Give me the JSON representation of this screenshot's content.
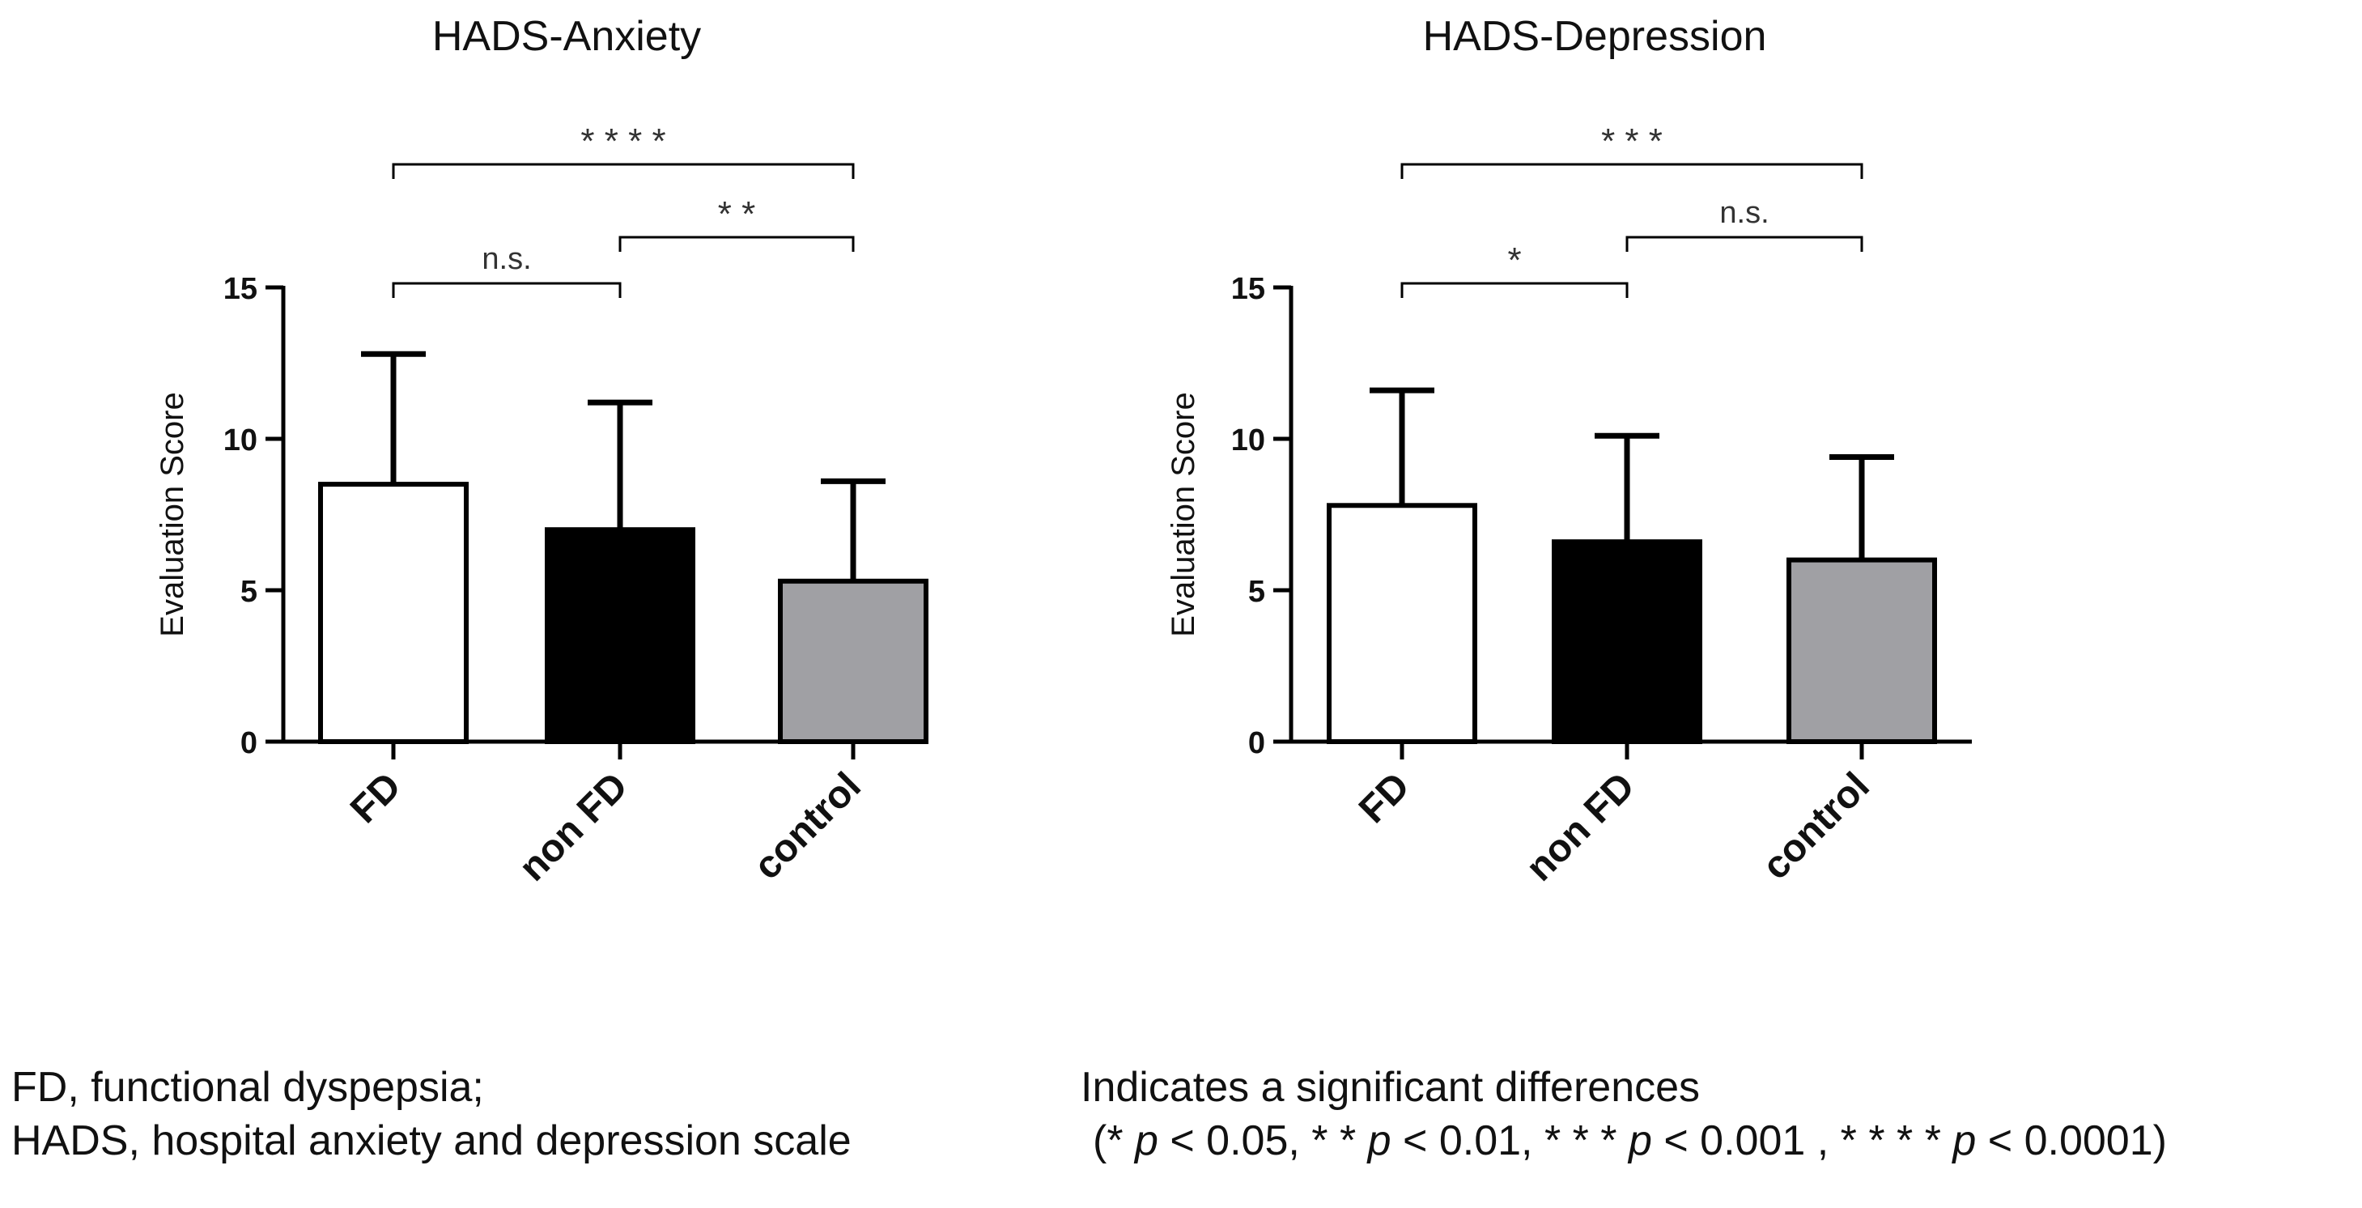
{
  "chart_data": [
    {
      "type": "bar",
      "title": "HADS-Anxiety",
      "xlabel": "",
      "ylabel": "Evaluation Score",
      "ylim": [
        0,
        15
      ],
      "yticks": [
        0,
        5,
        10,
        15
      ],
      "ytick_labels": [
        "0",
        "5",
        "10",
        "15"
      ],
      "categories": [
        "FD",
        "non FD",
        "control"
      ],
      "values": [
        8.5,
        7.0,
        5.3
      ],
      "error_upper": [
        12.8,
        11.2,
        8.6
      ],
      "bar_colors": [
        "#ffffff",
        "#000000",
        "#a0a0a4"
      ],
      "significance": [
        {
          "from": 0,
          "to": 1,
          "label": "n.s."
        },
        {
          "from": 1,
          "to": 2,
          "label": "* *"
        },
        {
          "from": 0,
          "to": 2,
          "label": "* * * *"
        }
      ]
    },
    {
      "type": "bar",
      "title": "HADS-Depression",
      "xlabel": "",
      "ylabel": "Evaluation Score",
      "ylim": [
        0,
        15
      ],
      "yticks": [
        0,
        5,
        10,
        15
      ],
      "ytick_labels": [
        "0",
        "5",
        "10",
        "15"
      ],
      "categories": [
        "FD",
        "non FD",
        "control"
      ],
      "values": [
        7.8,
        6.6,
        6.0
      ],
      "error_upper": [
        11.6,
        10.1,
        9.4
      ],
      "bar_colors": [
        "#ffffff",
        "#000000",
        "#a0a0a4"
      ],
      "significance": [
        {
          "from": 0,
          "to": 1,
          "label": "*"
        },
        {
          "from": 1,
          "to": 2,
          "label": "n.s."
        },
        {
          "from": 0,
          "to": 2,
          "label": "* * *"
        }
      ]
    }
  ],
  "footnotes": {
    "left_line1": "FD, functional dyspepsia;",
    "left_line2": "HADS, hospital anxiety and depression scale",
    "right_line1": "Indicates a significant differences",
    "right_line2": {
      "open": "(* ",
      "p1": "p",
      "t1": " < 0.05, * * ",
      "p2": "p",
      "t2": " < 0.01, * * * ",
      "p3": "p",
      "t3": " < 0.001 , * * * * ",
      "p4": "p",
      "t4": " < 0.0001)"
    }
  }
}
